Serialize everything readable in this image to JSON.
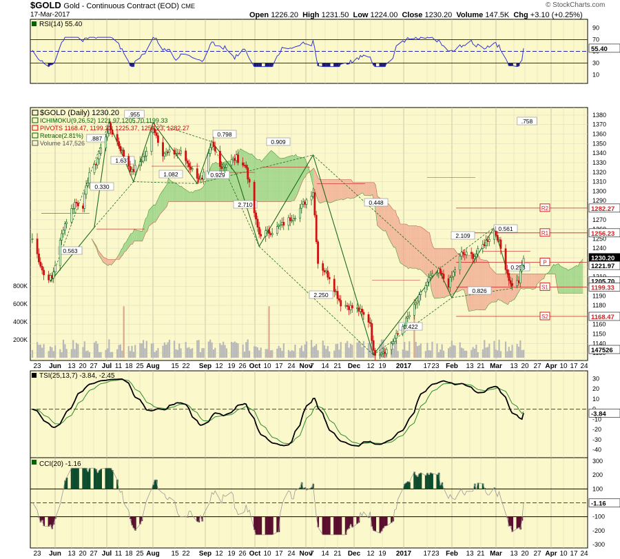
{
  "header": {
    "symbol": "$GOLD",
    "description": "Gold - Continuous Contract (EOD)",
    "exchange": "CME",
    "date": "17-Mar-2017",
    "open_label": "Open",
    "open": "1226.20",
    "high_label": "High",
    "high": "1231.50",
    "low_label": "Low",
    "low": "1224.00",
    "close_label": "Close",
    "close": "1230.20",
    "volume_label": "Volume",
    "volume": "147.5K",
    "chg_label": "Chg",
    "chg": "+3.10 (+0.25%)",
    "watermark": "© StockCharts.com"
  },
  "rsi_panel": {
    "legend": "RSI(14) 55.40",
    "value_tag": "55.40",
    "y_ticks": [
      "90",
      "70",
      "50",
      "30",
      "10"
    ]
  },
  "price_panel": {
    "legend": [
      {
        "text": "$GOLD (Daily) 1230.20",
        "color": "#000000"
      },
      {
        "text": "ICHIMOKU(9,26,52) 1221.97 1205.70 1199.33",
        "color": "#006400"
      },
      {
        "text": "PIVOTS 1168.47, 1199.33, 1225.37, 1256.23, 1282.27",
        "color": "#cc0000"
      },
      {
        "text": "Retrace(2.81%)",
        "color": "#006400"
      },
      {
        "text": "Volume 147,526",
        "color": "#555555"
      }
    ],
    "y_ticks": [
      "1380",
      "1370",
      "1360",
      "1350",
      "1340",
      "1330",
      "1320",
      "1310",
      "1300",
      "1290",
      "1280",
      "1270",
      "1260",
      "1250",
      "1240",
      "1230",
      "1220",
      "1210",
      "1200",
      "1190",
      "1180",
      "1170",
      "1160",
      "1150",
      "1140",
      "1130"
    ],
    "vol_ticks": [
      "800K",
      "600K",
      "400K",
      "200K"
    ],
    "price_tags": [
      {
        "text": "1282.27",
        "kind": "pivot"
      },
      {
        "text": "1256.23",
        "kind": "pivot"
      },
      {
        "text": "1230.20",
        "kind": "close"
      },
      {
        "text": "1221.97",
        "kind": "ichi"
      },
      {
        "text": "1205.70",
        "kind": "ichi"
      },
      {
        "text": "1199.33",
        "kind": "pivot"
      },
      {
        "text": "1168.47",
        "kind": "pivot"
      },
      {
        "text": "147526",
        "kind": "vol"
      }
    ],
    "pivot_labels": [
      "R2",
      "R1",
      "P",
      "S1",
      "S2"
    ],
    "retrace_labels": [
      ".955",
      ".758",
      ".887",
      "1.637",
      "0.330",
      "0.563",
      "1.082",
      "0.929",
      "0.798",
      "0.909",
      "2.710",
      "0.448",
      "2.250",
      "0.422",
      "2.109",
      "0.561",
      "0.826",
      "0.253"
    ]
  },
  "tsi_panel": {
    "legend": "TSI(25,13,7) -3.84, -2.45",
    "value_tag": "-3.84",
    "y_ticks": [
      "30",
      "20",
      "10",
      "0",
      "-10",
      "-20",
      "-30",
      "-40"
    ]
  },
  "cci_panel": {
    "legend": "CCI(20) -1.16",
    "value_tag": "-1.16",
    "y_ticks": [
      "300",
      "200",
      "100",
      "0",
      "-100",
      "-200",
      "-300"
    ]
  },
  "x_axis": {
    "labels": [
      {
        "t": "23",
        "x": 54
      },
      {
        "t": "Jun",
        "x": 80,
        "b": 1
      },
      {
        "t": "13",
        "x": 104
      },
      {
        "t": "20",
        "x": 120
      },
      {
        "t": "27",
        "x": 136
      },
      {
        "t": "Jul",
        "x": 155,
        "b": 1
      },
      {
        "t": "11",
        "x": 172
      },
      {
        "t": "18",
        "x": 187
      },
      {
        "t": "25",
        "x": 203
      },
      {
        "t": "Aug",
        "x": 222,
        "b": 1
      },
      {
        "t": "15",
        "x": 254
      },
      {
        "t": "22",
        "x": 270
      },
      {
        "t": "Sep",
        "x": 298,
        "b": 1
      },
      {
        "t": "12",
        "x": 318
      },
      {
        "t": "19",
        "x": 336
      },
      {
        "t": "26",
        "x": 352
      },
      {
        "t": "Oct",
        "x": 370,
        "b": 1
      },
      {
        "t": "10",
        "x": 388
      },
      {
        "t": "17",
        "x": 405
      },
      {
        "t": "24",
        "x": 423
      },
      {
        "t": "Nov",
        "x": 444,
        "b": 1
      },
      {
        "t": "7",
        "x": 453
      },
      {
        "t": "14",
        "x": 472
      },
      {
        "t": "21",
        "x": 490
      },
      {
        "t": "Dec",
        "x": 514,
        "b": 1
      },
      {
        "t": "12",
        "x": 538
      },
      {
        "t": "19",
        "x": 555
      },
      {
        "t": "2017",
        "x": 586,
        "b": 1
      },
      {
        "t": "17",
        "x": 620
      },
      {
        "t": "23",
        "x": 632
      },
      {
        "t": "Feb",
        "x": 656,
        "b": 1
      },
      {
        "t": "13",
        "x": 682
      },
      {
        "t": "21",
        "x": 698
      },
      {
        "t": "Mar",
        "x": 720,
        "b": 1
      },
      {
        "t": "13",
        "x": 746
      },
      {
        "t": "20",
        "x": 762
      },
      {
        "t": "27",
        "x": 780
      },
      {
        "t": "Apr",
        "x": 800,
        "b": 1
      },
      {
        "t": "10",
        "x": 818
      },
      {
        "t": "17",
        "x": 833
      },
      {
        "t": "24",
        "x": 848
      }
    ]
  },
  "chart_data": {
    "type": "line",
    "title": "$GOLD Gold - Continuous Contract (EOD) CME",
    "date_range": [
      "2016-05-23",
      "2017-03-17"
    ],
    "close_path": [
      [
        "2016-05-20",
        1250
      ],
      [
        "2016-05-27",
        1212
      ],
      [
        "2016-06-01",
        1208
      ],
      [
        "2016-06-08",
        1262
      ],
      [
        "2016-06-15",
        1288
      ],
      [
        "2016-06-20",
        1285
      ],
      [
        "2016-06-24",
        1320
      ],
      [
        "2016-06-27",
        1325
      ],
      [
        "2016-07-06",
        1368
      ],
      [
        "2016-07-11",
        1352
      ],
      [
        "2016-07-20",
        1320
      ],
      [
        "2016-07-29",
        1340
      ],
      [
        "2016-08-02",
        1368
      ],
      [
        "2016-08-08",
        1340
      ],
      [
        "2016-08-19",
        1340
      ],
      [
        "2016-08-26",
        1322
      ],
      [
        "2016-09-01",
        1310
      ],
      [
        "2016-09-07",
        1350
      ],
      [
        "2016-09-13",
        1325
      ],
      [
        "2016-09-22",
        1335
      ],
      [
        "2016-09-28",
        1325
      ],
      [
        "2016-10-04",
        1268
      ],
      [
        "2016-10-06",
        1255
      ],
      [
        "2016-10-14",
        1258
      ],
      [
        "2016-10-21",
        1266
      ],
      [
        "2016-10-28",
        1275
      ],
      [
        "2016-11-08",
        1300
      ],
      [
        "2016-11-11",
        1225
      ],
      [
        "2016-11-18",
        1210
      ],
      [
        "2016-11-25",
        1182
      ],
      [
        "2016-12-06",
        1175
      ],
      [
        "2016-12-13",
        1162
      ],
      [
        "2016-12-15",
        1130
      ],
      [
        "2016-12-23",
        1133
      ],
      [
        "2016-12-30",
        1150
      ],
      [
        "2017-01-09",
        1178
      ],
      [
        "2017-01-18",
        1208
      ],
      [
        "2017-01-24",
        1215
      ],
      [
        "2017-01-30",
        1202
      ],
      [
        "2017-02-07",
        1234
      ],
      [
        "2017-02-15",
        1232
      ],
      [
        "2017-02-27",
        1258
      ],
      [
        "2017-03-01",
        1252
      ],
      [
        "2017-03-09",
        1202
      ],
      [
        "2017-03-14",
        1205
      ],
      [
        "2017-03-17",
        1230
      ]
    ],
    "ohlc_last": {
      "open": 1226.2,
      "high": 1231.5,
      "low": 1224.0,
      "close": 1230.2,
      "volume": 147526
    },
    "ichimoku": {
      "params": [
        9,
        26,
        52
      ],
      "values": [
        1221.97,
        1205.7,
        1199.33
      ]
    },
    "pivots": {
      "S2": 1168.47,
      "S1": 1199.33,
      "P": 1225.37,
      "R1": 1256.23,
      "R2": 1282.27
    },
    "retrace_pct": 2.81,
    "rsi": {
      "period": 14,
      "last": 55.4,
      "ylim": [
        0,
        100
      ],
      "levels": [
        30,
        70
      ]
    },
    "tsi": {
      "params": [
        25,
        13,
        7
      ],
      "last": -3.84,
      "signal": -2.45,
      "ylim": [
        -45,
        35
      ]
    },
    "cci": {
      "period": 20,
      "last": -1.16,
      "ylim": [
        -300,
        300
      ],
      "levels": [
        -100,
        100
      ]
    },
    "price_ylim": [
      1125,
      1385
    ],
    "grid": true,
    "legend_placement": "top-left"
  }
}
